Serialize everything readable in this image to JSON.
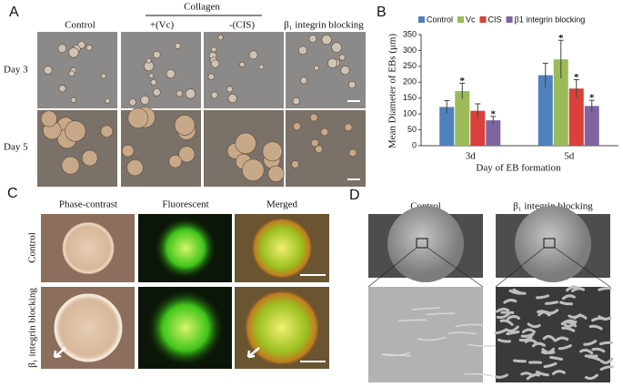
{
  "panels": {
    "A": {
      "label": "A",
      "group": "Collagen",
      "columns": [
        "Control",
        "+(Vc)",
        "-(CIS)",
        "β₁ integrin blocking"
      ],
      "rows": [
        "Day 3",
        "Day 5"
      ]
    },
    "C": {
      "label": "C",
      "columns": [
        "Phase-contrast",
        "Fluorescent",
        "Merged"
      ],
      "rows": [
        "Control",
        "β₁ integrin blocking"
      ]
    },
    "D": {
      "label": "D",
      "columns": [
        "Control",
        "β₁ integrin blocking"
      ]
    }
  },
  "chart_data": {
    "type": "bar",
    "panel_label": "B",
    "categories": [
      "3d",
      "5d"
    ],
    "xlabel": "Day of EB formation",
    "ylabel": "Mean Diameter of EBs (μm)",
    "ylim": [
      0,
      350
    ],
    "yticks": [
      0,
      50,
      100,
      150,
      200,
      250,
      300,
      350
    ],
    "legend": "top",
    "significance_mark": "*",
    "series": [
      {
        "name": "Control",
        "color": "#4f81bd",
        "values": [
          122,
          222
        ],
        "errors": [
          20,
          38
        ],
        "significant": [
          false,
          false
        ]
      },
      {
        "name": "Vc",
        "color": "#9bbb59",
        "values": [
          172,
          272
        ],
        "errors": [
          25,
          60
        ],
        "significant": [
          true,
          true
        ]
      },
      {
        "name": "CIS",
        "color": "#d9413a",
        "values": [
          110,
          180
        ],
        "errors": [
          22,
          28
        ],
        "significant": [
          false,
          true
        ]
      },
      {
        "name": "β1 integrin blocking",
        "color": "#8064a2",
        "values": [
          80,
          125
        ],
        "errors": [
          12,
          18
        ],
        "significant": [
          true,
          true
        ]
      }
    ]
  }
}
